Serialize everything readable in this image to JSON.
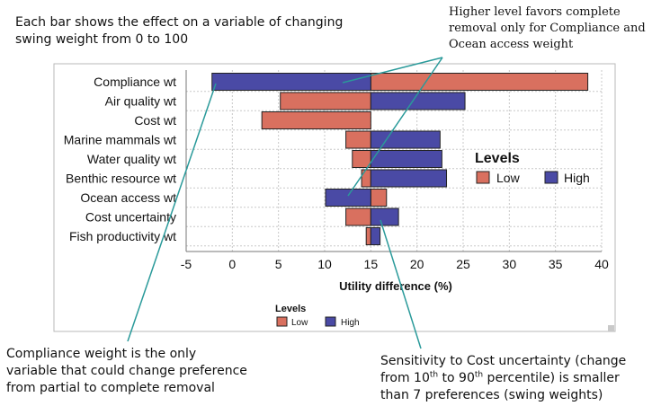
{
  "notes": {
    "top_left": [
      "Each bar shows the effect on a variable of changing",
      "swing weight from 0 to 100"
    ],
    "top_right": [
      "Higher level favors complete",
      "removal only for Compliance and",
      "Ocean access weight"
    ],
    "bottom_left": [
      "Compliance weight is the only",
      "variable that could change preference",
      "from partial to complete removal"
    ],
    "bottom_right": {
      "line1": "Sensitivity to Cost uncertainty (change",
      "line2_pre": "from 10",
      "sup1": "th",
      "line2_mid": " to 90",
      "sup2": "th",
      "line2_post": " percentile) is smaller",
      "line3": "than 7 preferences (swing weights)"
    }
  },
  "colors": {
    "low": "#d9705f",
    "high": "#4a4aa5",
    "bar_border": "#222222",
    "grid": "#c8c8c8",
    "annotation_line": "#2a9a9a",
    "frame": "#b9b9b9"
  },
  "chart_data": {
    "type": "bar",
    "orientation": "horizontal",
    "subtype": "tornado",
    "title": "",
    "xlabel": "Utility difference (%)",
    "ylabel": "",
    "xlim": [
      -5,
      40
    ],
    "xticks": [
      -5,
      0,
      5,
      10,
      15,
      20,
      25,
      30,
      35,
      40
    ],
    "baseline": 15,
    "grid": true,
    "categories": [
      "Compliance wt",
      "Air quality wt",
      "Cost wt",
      "Marine mammals wt",
      "Water quality wt",
      "Benthic resource wt",
      "Ocean access wt",
      "Cost uncertainty",
      "Fish productivity wt"
    ],
    "series": [
      {
        "name": "Low",
        "values": [
          38.5,
          5.2,
          3.2,
          12.3,
          13.0,
          14.0,
          16.7,
          12.3,
          14.5
        ]
      },
      {
        "name": "High",
        "values": [
          -2.2,
          25.2,
          15.0,
          22.5,
          22.7,
          23.2,
          10.1,
          18.0,
          16.0
        ]
      }
    ],
    "legend_title": "Levels",
    "legend_placement": [
      "right",
      "bottom"
    ]
  }
}
